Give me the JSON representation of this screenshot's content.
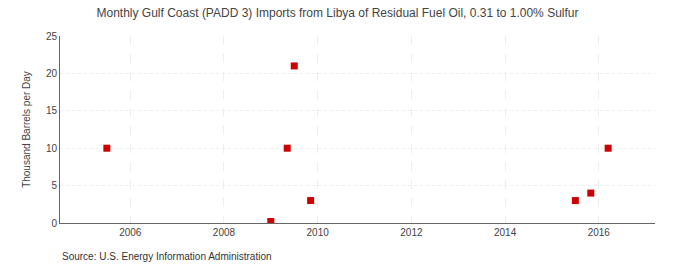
{
  "chart_data": {
    "type": "scatter",
    "title": "Monthly Gulf Coast (PADD 3) Imports from Libya of Residual Fuel Oil, 0.31 to 1.00% Sulfur",
    "ylabel": "Thousand Barrels per Day",
    "annotations": [
      "Source: U.S. Energy Information Administration"
    ],
    "x": [
      2005.5,
      2009.0,
      2009.35,
      2009.5,
      2009.85,
      2015.5,
      2015.83,
      2016.2
    ],
    "values": [
      10,
      0.2,
      10,
      21,
      3,
      3,
      4,
      10
    ],
    "color": "#cc0000",
    "marker": "square",
    "xlim": [
      2004.5,
      2017.2
    ],
    "ylim": [
      0,
      25
    ],
    "xticks": [
      2006,
      2008,
      2010,
      2012,
      2014,
      2016
    ],
    "yticks": [
      0,
      5,
      10,
      15,
      20,
      25
    ],
    "grid": true
  }
}
